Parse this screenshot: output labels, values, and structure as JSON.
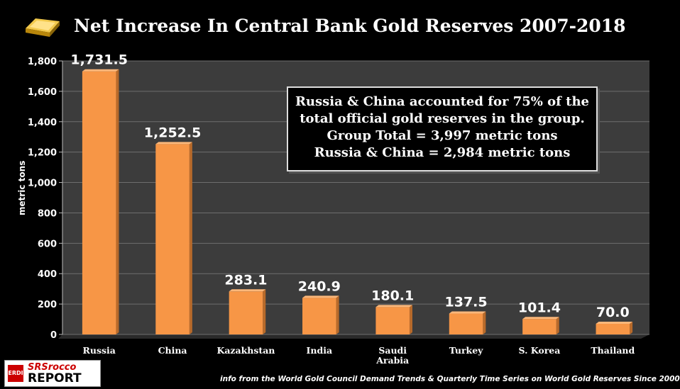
{
  "title": "Net Increase In Central Bank Gold Reserves 2007-2018",
  "callout": {
    "line1": "Russia & China accounted for 75% of the",
    "line2": "total official gold reserves in the group.",
    "line3": "Group Total = 3,997 metric tons",
    "line4": "Russia & China = 2,984 metric tons"
  },
  "logo": {
    "badge": "ERDI",
    "line1": "SRSrocco",
    "line2": "REPORT"
  },
  "source": "info from the World Gold Council Demand Trends & Quarterly Time Series on World Gold Reserves Since 2000",
  "colors": {
    "background": "#000000",
    "plot_bg": "#3c3c3c",
    "bar": "#f79646",
    "text": "#ffffff"
  },
  "chart_data": {
    "type": "bar",
    "title": "Net Increase In Central Bank Gold Reserves 2007-2018",
    "xlabel": "",
    "ylabel": "metric tons",
    "ylim": [
      0,
      1800
    ],
    "yticks": [
      "0",
      "200",
      "400",
      "600",
      "800",
      "1,000",
      "1,200",
      "1,400",
      "1,600",
      "1,800"
    ],
    "ytick_values": [
      0,
      200,
      400,
      600,
      800,
      1000,
      1200,
      1400,
      1600,
      1800
    ],
    "categories": [
      "Russia",
      "China",
      "Kazakhstan",
      "India",
      "Saudi Arabia",
      "Turkey",
      "S. Korea",
      "Thailand"
    ],
    "values": [
      1731.5,
      1252.5,
      283.1,
      240.9,
      180.1,
      137.5,
      101.4,
      70.0
    ],
    "data_labels": [
      "1,731.5",
      "1,252.5",
      "283.1",
      "240.9",
      "180.1",
      "137.5",
      "101.4",
      "70.0"
    ],
    "grid": true,
    "legend": "none"
  }
}
